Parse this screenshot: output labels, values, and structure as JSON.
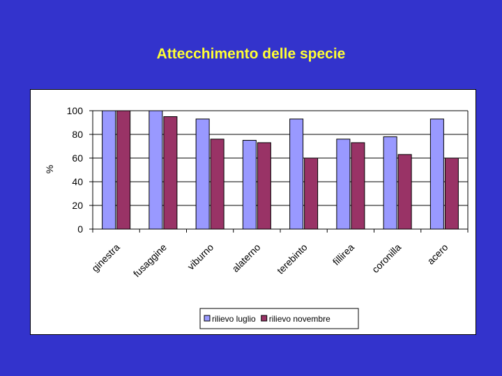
{
  "slide": {
    "title": "Attecchimento delle specie"
  },
  "chart_data": {
    "type": "bar",
    "title": "",
    "xlabel": "",
    "ylabel": "%",
    "ylim": [
      0,
      100
    ],
    "yticks": [
      0,
      20,
      40,
      60,
      80,
      100
    ],
    "categories": [
      "ginestra",
      "fusaggine",
      "viburno",
      "alaterno",
      "terebinto",
      "fillirea",
      "coronilla",
      "acero"
    ],
    "series": [
      {
        "name": "rilievo luglio",
        "color": "#9999ff",
        "values": [
          100,
          100,
          93,
          75,
          93,
          76,
          78,
          93
        ]
      },
      {
        "name": "rilievo novembre",
        "color": "#993366",
        "values": [
          100,
          95,
          76,
          73,
          60,
          73,
          63,
          60
        ]
      }
    ],
    "grid": true,
    "legend": "bottom"
  }
}
